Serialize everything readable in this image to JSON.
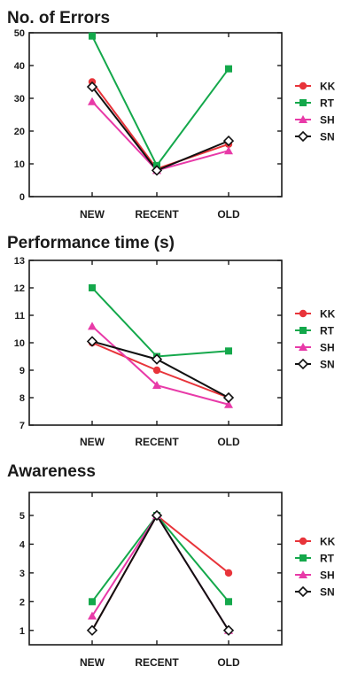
{
  "colors": {
    "KK": "#e8343a",
    "RT": "#14a84b",
    "SH": "#e83aa8",
    "SN": "#111111"
  },
  "chart_data": [
    {
      "type": "line",
      "title": "No. of Errors",
      "categories": [
        "NEW",
        "RECENT",
        "OLD"
      ],
      "ylim": [
        0,
        50
      ],
      "yticks": [
        0,
        10,
        20,
        30,
        40,
        50
      ],
      "legend": "right",
      "series": [
        {
          "name": "KK",
          "marker": "circle",
          "values": [
            35,
            8.5,
            16
          ]
        },
        {
          "name": "RT",
          "marker": "square",
          "values": [
            49,
            9.5,
            39
          ]
        },
        {
          "name": "SH",
          "marker": "triangle",
          "values": [
            29,
            8,
            14
          ]
        },
        {
          "name": "SN",
          "marker": "diamond",
          "values": [
            33.5,
            8,
            17
          ]
        }
      ]
    },
    {
      "type": "line",
      "title": "Performance time (s)",
      "categories": [
        "NEW",
        "RECENT",
        "OLD"
      ],
      "ylim": [
        7,
        13
      ],
      "yticks": [
        7,
        8,
        9,
        10,
        11,
        12,
        13
      ],
      "legend": "right",
      "series": [
        {
          "name": "KK",
          "marker": "circle",
          "values": [
            10.0,
            9.0,
            8.0
          ]
        },
        {
          "name": "RT",
          "marker": "square",
          "values": [
            12.0,
            9.5,
            9.7
          ]
        },
        {
          "name": "SH",
          "marker": "triangle",
          "values": [
            10.6,
            8.45,
            7.75
          ]
        },
        {
          "name": "SN",
          "marker": "diamond",
          "values": [
            10.05,
            9.4,
            8.0
          ]
        }
      ]
    },
    {
      "type": "line",
      "title": "Awareness",
      "categories": [
        "NEW",
        "RECENT",
        "OLD"
      ],
      "ylim": [
        0.5,
        5.8
      ],
      "yticks": [
        1,
        2,
        3,
        4,
        5
      ],
      "legend": "right",
      "series": [
        {
          "name": "KK",
          "marker": "circle",
          "values": [
            1,
            5,
            3
          ]
        },
        {
          "name": "RT",
          "marker": "square",
          "values": [
            2,
            5,
            2
          ]
        },
        {
          "name": "SH",
          "marker": "triangle",
          "values": [
            1.5,
            5,
            1
          ]
        },
        {
          "name": "SN",
          "marker": "diamond",
          "values": [
            1,
            5,
            1
          ]
        }
      ]
    }
  ]
}
